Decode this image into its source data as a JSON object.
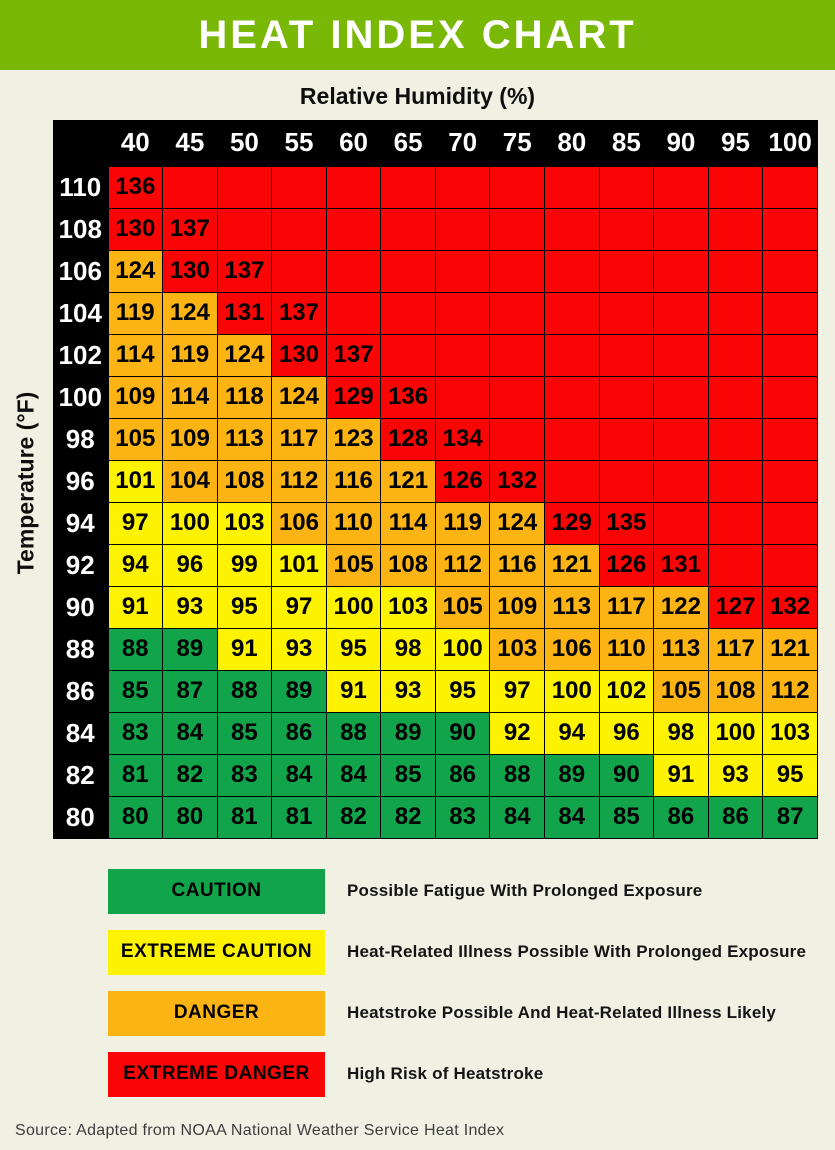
{
  "colors": {
    "g": "#12A44B",
    "y": "#FDF301",
    "o": "#FBB414",
    "r": "#F90505",
    "header_bar": "#7AB807",
    "table_header": "#000000",
    "background": "#F0F1E3"
  },
  "chart_data": {
    "type": "heatmap",
    "title": "HEAT INDEX CHART",
    "xlabel": "Relative Humidity (%)",
    "ylabel": "Temperature (°F)",
    "x": [
      40,
      45,
      50,
      55,
      60,
      65,
      70,
      75,
      80,
      85,
      90,
      95,
      100
    ],
    "y": [
      110,
      108,
      106,
      104,
      102,
      100,
      98,
      96,
      94,
      92,
      90,
      88,
      86,
      84,
      82,
      80
    ],
    "color_key": {
      "g": "caution",
      "y": "extreme caution",
      "o": "danger",
      "r": "extreme danger"
    },
    "rows": [
      {
        "temp": "110",
        "cells": [
          [
            "136",
            "r"
          ],
          [
            "",
            "r"
          ],
          [
            "",
            "r"
          ],
          [
            "",
            "r"
          ],
          [
            "",
            "r"
          ],
          [
            "",
            "r"
          ],
          [
            "",
            "r"
          ],
          [
            "",
            "r"
          ],
          [
            "",
            "r"
          ],
          [
            "",
            "r"
          ],
          [
            "",
            "r"
          ],
          [
            "",
            "r"
          ],
          [
            "",
            "r"
          ]
        ]
      },
      {
        "temp": "108",
        "cells": [
          [
            "130",
            "r"
          ],
          [
            "137",
            "r"
          ],
          [
            "",
            "r"
          ],
          [
            "",
            "r"
          ],
          [
            "",
            "r"
          ],
          [
            "",
            "r"
          ],
          [
            "",
            "r"
          ],
          [
            "",
            "r"
          ],
          [
            "",
            "r"
          ],
          [
            "",
            "r"
          ],
          [
            "",
            "r"
          ],
          [
            "",
            "r"
          ],
          [
            "",
            "r"
          ]
        ]
      },
      {
        "temp": "106",
        "cells": [
          [
            "124",
            "o"
          ],
          [
            "130",
            "r"
          ],
          [
            "137",
            "r"
          ],
          [
            "",
            "r"
          ],
          [
            "",
            "r"
          ],
          [
            "",
            "r"
          ],
          [
            "",
            "r"
          ],
          [
            "",
            "r"
          ],
          [
            "",
            "r"
          ],
          [
            "",
            "r"
          ],
          [
            "",
            "r"
          ],
          [
            "",
            "r"
          ],
          [
            "",
            "r"
          ]
        ]
      },
      {
        "temp": "104",
        "cells": [
          [
            "119",
            "o"
          ],
          [
            "124",
            "o"
          ],
          [
            "131",
            "r"
          ],
          [
            "137",
            "r"
          ],
          [
            "",
            "r"
          ],
          [
            "",
            "r"
          ],
          [
            "",
            "r"
          ],
          [
            "",
            "r"
          ],
          [
            "",
            "r"
          ],
          [
            "",
            "r"
          ],
          [
            "",
            "r"
          ],
          [
            "",
            "r"
          ],
          [
            "",
            "r"
          ]
        ]
      },
      {
        "temp": "102",
        "cells": [
          [
            "114",
            "o"
          ],
          [
            "119",
            "o"
          ],
          [
            "124",
            "o"
          ],
          [
            "130",
            "r"
          ],
          [
            "137",
            "r"
          ],
          [
            "",
            "r"
          ],
          [
            "",
            "r"
          ],
          [
            "",
            "r"
          ],
          [
            "",
            "r"
          ],
          [
            "",
            "r"
          ],
          [
            "",
            "r"
          ],
          [
            "",
            "r"
          ],
          [
            "",
            "r"
          ]
        ]
      },
      {
        "temp": "100",
        "cells": [
          [
            "109",
            "o"
          ],
          [
            "114",
            "o"
          ],
          [
            "118",
            "o"
          ],
          [
            "124",
            "o"
          ],
          [
            "129",
            "r"
          ],
          [
            "136",
            "r"
          ],
          [
            "",
            "r"
          ],
          [
            "",
            "r"
          ],
          [
            "",
            "r"
          ],
          [
            "",
            "r"
          ],
          [
            "",
            "r"
          ],
          [
            "",
            "r"
          ],
          [
            "",
            "r"
          ]
        ]
      },
      {
        "temp": "98",
        "cells": [
          [
            "105",
            "o"
          ],
          [
            "109",
            "o"
          ],
          [
            "113",
            "o"
          ],
          [
            "117",
            "o"
          ],
          [
            "123",
            "o"
          ],
          [
            "128",
            "r"
          ],
          [
            "134",
            "r"
          ],
          [
            "",
            "r"
          ],
          [
            "",
            "r"
          ],
          [
            "",
            "r"
          ],
          [
            "",
            "r"
          ],
          [
            "",
            "r"
          ],
          [
            "",
            "r"
          ]
        ]
      },
      {
        "temp": "96",
        "cells": [
          [
            "101",
            "y"
          ],
          [
            "104",
            "o"
          ],
          [
            "108",
            "o"
          ],
          [
            "112",
            "o"
          ],
          [
            "116",
            "o"
          ],
          [
            "121",
            "o"
          ],
          [
            "126",
            "r"
          ],
          [
            "132",
            "r"
          ],
          [
            "",
            "r"
          ],
          [
            "",
            "r"
          ],
          [
            "",
            "r"
          ],
          [
            "",
            "r"
          ],
          [
            "",
            "r"
          ]
        ]
      },
      {
        "temp": "94",
        "cells": [
          [
            "97",
            "y"
          ],
          [
            "100",
            "y"
          ],
          [
            "103",
            "y"
          ],
          [
            "106",
            "o"
          ],
          [
            "110",
            "o"
          ],
          [
            "114",
            "o"
          ],
          [
            "119",
            "o"
          ],
          [
            "124",
            "o"
          ],
          [
            "129",
            "r"
          ],
          [
            "135",
            "r"
          ],
          [
            "",
            "r"
          ],
          [
            "",
            "r"
          ],
          [
            "",
            "r"
          ]
        ]
      },
      {
        "temp": "92",
        "cells": [
          [
            "94",
            "y"
          ],
          [
            "96",
            "y"
          ],
          [
            "99",
            "y"
          ],
          [
            "101",
            "y"
          ],
          [
            "105",
            "o"
          ],
          [
            "108",
            "o"
          ],
          [
            "112",
            "o"
          ],
          [
            "116",
            "o"
          ],
          [
            "121",
            "o"
          ],
          [
            "126",
            "r"
          ],
          [
            "131",
            "r"
          ],
          [
            "",
            "r"
          ],
          [
            "",
            "r"
          ]
        ]
      },
      {
        "temp": "90",
        "cells": [
          [
            "91",
            "y"
          ],
          [
            "93",
            "y"
          ],
          [
            "95",
            "y"
          ],
          [
            "97",
            "y"
          ],
          [
            "100",
            "y"
          ],
          [
            "103",
            "y"
          ],
          [
            "105",
            "o"
          ],
          [
            "109",
            "o"
          ],
          [
            "113",
            "o"
          ],
          [
            "117",
            "o"
          ],
          [
            "122",
            "o"
          ],
          [
            "127",
            "r"
          ],
          [
            "132",
            "r"
          ]
        ]
      },
      {
        "temp": "88",
        "cells": [
          [
            "88",
            "g"
          ],
          [
            "89",
            "g"
          ],
          [
            "91",
            "y"
          ],
          [
            "93",
            "y"
          ],
          [
            "95",
            "y"
          ],
          [
            "98",
            "y"
          ],
          [
            "100",
            "y"
          ],
          [
            "103",
            "o"
          ],
          [
            "106",
            "o"
          ],
          [
            "110",
            "o"
          ],
          [
            "113",
            "o"
          ],
          [
            "117",
            "o"
          ],
          [
            "121",
            "o"
          ]
        ]
      },
      {
        "temp": "86",
        "cells": [
          [
            "85",
            "g"
          ],
          [
            "87",
            "g"
          ],
          [
            "88",
            "g"
          ],
          [
            "89",
            "g"
          ],
          [
            "91",
            "y"
          ],
          [
            "93",
            "y"
          ],
          [
            "95",
            "y"
          ],
          [
            "97",
            "y"
          ],
          [
            "100",
            "y"
          ],
          [
            "102",
            "y"
          ],
          [
            "105",
            "o"
          ],
          [
            "108",
            "o"
          ],
          [
            "112",
            "o"
          ]
        ]
      },
      {
        "temp": "84",
        "cells": [
          [
            "83",
            "g"
          ],
          [
            "84",
            "g"
          ],
          [
            "85",
            "g"
          ],
          [
            "86",
            "g"
          ],
          [
            "88",
            "g"
          ],
          [
            "89",
            "g"
          ],
          [
            "90",
            "g"
          ],
          [
            "92",
            "y"
          ],
          [
            "94",
            "y"
          ],
          [
            "96",
            "y"
          ],
          [
            "98",
            "y"
          ],
          [
            "100",
            "y"
          ],
          [
            "103",
            "y"
          ]
        ]
      },
      {
        "temp": "82",
        "cells": [
          [
            "81",
            "g"
          ],
          [
            "82",
            "g"
          ],
          [
            "83",
            "g"
          ],
          [
            "84",
            "g"
          ],
          [
            "84",
            "g"
          ],
          [
            "85",
            "g"
          ],
          [
            "86",
            "g"
          ],
          [
            "88",
            "g"
          ],
          [
            "89",
            "g"
          ],
          [
            "90",
            "g"
          ],
          [
            "91",
            "y"
          ],
          [
            "93",
            "y"
          ],
          [
            "95",
            "y"
          ]
        ]
      },
      {
        "temp": "80",
        "cells": [
          [
            "80",
            "g"
          ],
          [
            "80",
            "g"
          ],
          [
            "81",
            "g"
          ],
          [
            "81",
            "g"
          ],
          [
            "82",
            "g"
          ],
          [
            "82",
            "g"
          ],
          [
            "83",
            "g"
          ],
          [
            "84",
            "g"
          ],
          [
            "84",
            "g"
          ],
          [
            "85",
            "g"
          ],
          [
            "86",
            "g"
          ],
          [
            "86",
            "g"
          ],
          [
            "87",
            "g"
          ]
        ]
      }
    ]
  },
  "legend": {
    "items": [
      {
        "label": "CAUTION",
        "color": "g",
        "description": "Possible Fatigue With Prolonged Exposure"
      },
      {
        "label": "EXTREME CAUTION",
        "color": "y",
        "description": "Heat-Related Illness Possible With Prolonged Exposure"
      },
      {
        "label": "DANGER",
        "color": "o",
        "description": "Heatstroke Possible And Heat-Related Illness Likely"
      },
      {
        "label": "EXTREME DANGER",
        "color": "r",
        "description": "High Risk of Heatstroke"
      }
    ]
  },
  "source": {
    "text": "Source: Adapted from NOAA National Weather Service Heat Index"
  }
}
